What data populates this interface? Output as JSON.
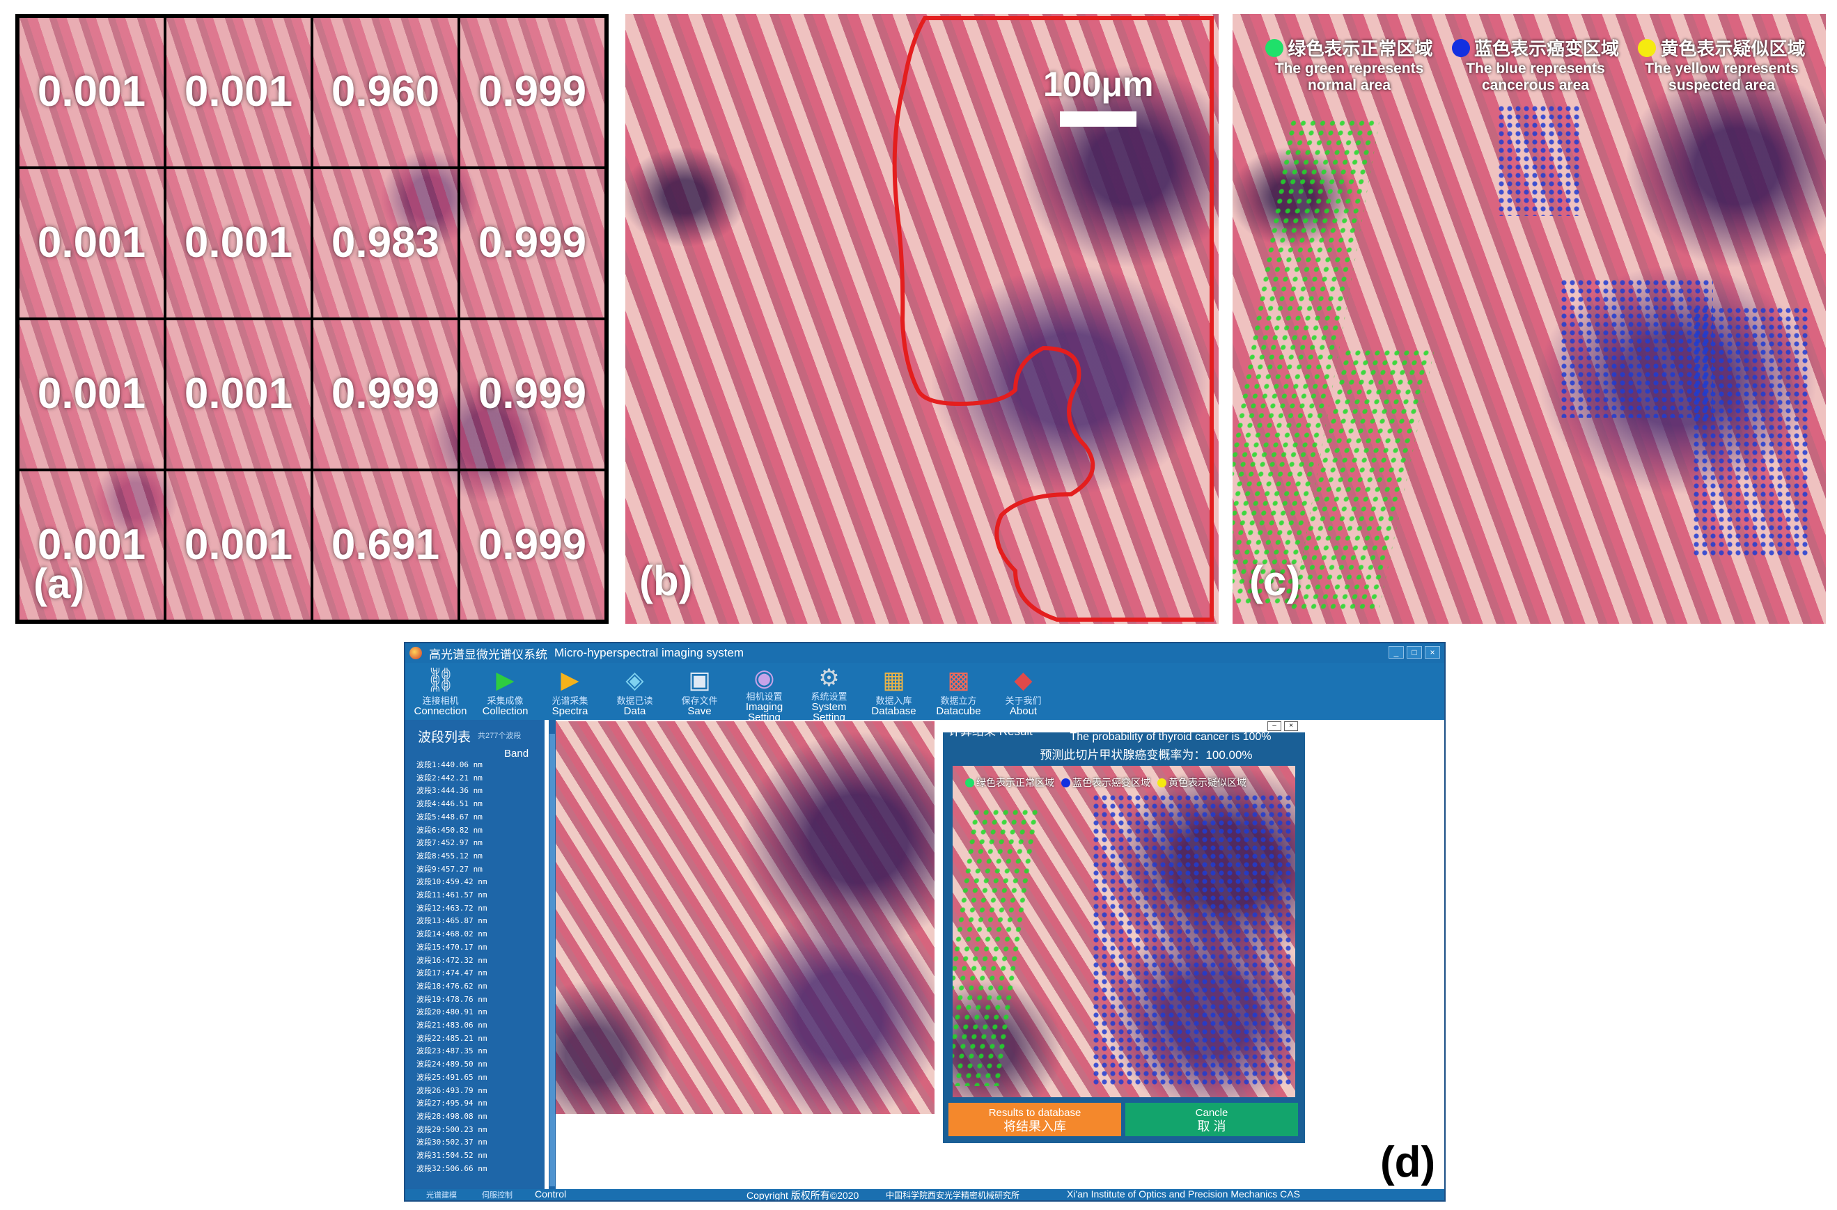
{
  "panel_a": {
    "label": "(a)",
    "grid": [
      [
        "0.001",
        "0.001",
        "0.960",
        "0.999"
      ],
      [
        "0.001",
        "0.001",
        "0.983",
        "0.999"
      ],
      [
        "0.001",
        "0.001",
        "0.999",
        "0.999"
      ],
      [
        "0.001",
        "0.001",
        "0.691",
        "0.999"
      ]
    ]
  },
  "panel_b": {
    "label": "(b)",
    "scale_bar": "100μm",
    "outline_color": "#e41e1e"
  },
  "panel_c": {
    "label": "(c)",
    "legend": [
      {
        "color": "#1fe06a",
        "cn": "绿色表示正常区域",
        "en_line1": "The green represents",
        "en_line2": "normal area"
      },
      {
        "color": "#1230e0",
        "cn": "蓝色表示癌变区域",
        "en_line1": "The blue represents",
        "en_line2": "cancerous area"
      },
      {
        "color": "#f5ea10",
        "cn": "黄色表示疑似区域",
        "en_line1": "The yellow represents",
        "en_line2": "suspected area"
      }
    ]
  },
  "panel_d": {
    "label": "(d)",
    "window": {
      "title_cn": "高光谱显微光谱仪系统",
      "title_en": "Micro-hyperspectral imaging system",
      "controls": [
        "_",
        "□",
        "×"
      ]
    },
    "toolbar": [
      {
        "icon": "link-icon",
        "cn": "连接相机",
        "en": "Connection"
      },
      {
        "icon": "play-green-icon",
        "cn": "采集成像",
        "en": "Collection"
      },
      {
        "icon": "play-store-icon",
        "cn": "光谱采集",
        "en": "Spectra"
      },
      {
        "icon": "data-cube-icon",
        "cn": "数据已读",
        "en": "Data"
      },
      {
        "icon": "floppy-disk-icon",
        "cn": "保存文件",
        "en": "Save"
      },
      {
        "icon": "camera-icon",
        "cn": "相机设置",
        "en": "Imaging"
      },
      {
        "icon": "gear-icon",
        "cn": "系统设置",
        "en": "System"
      },
      {
        "icon": "database-icon",
        "cn": "数据入库",
        "en": "Database"
      },
      {
        "icon": "rubik-cube-icon",
        "cn": "数据立方",
        "en": "Datacube"
      },
      {
        "icon": "info-diamond-icon",
        "cn": "关于我们",
        "en": "About"
      }
    ],
    "toolbar_sub": {
      "imaging": "Setting",
      "system": "Setting"
    },
    "band_panel": {
      "title": "波段列表",
      "count": "共277个波段",
      "column": "Band",
      "bands": [
        "波段1:440.06 nm",
        "波段2:442.21 nm",
        "波段3:444.36 nm",
        "波段4:446.51 nm",
        "波段5:448.67 nm",
        "波段6:450.82 nm",
        "波段7:452.97 nm",
        "波段8:455.12 nm",
        "波段9:457.27 nm",
        "波段10:459.42 nm",
        "波段11:461.57 nm",
        "波段12:463.72 nm",
        "波段13:465.87 nm",
        "波段14:468.02 nm",
        "波段15:470.17 nm",
        "波段16:472.32 nm",
        "波段17:474.47 nm",
        "波段18:476.62 nm",
        "波段19:478.76 nm",
        "波段20:480.91 nm",
        "波段21:483.06 nm",
        "波段22:485.21 nm",
        "波段23:487.35 nm",
        "波段24:489.50 nm",
        "波段25:491.65 nm",
        "波段26:493.79 nm",
        "波段27:495.94 nm",
        "波段28:498.08 nm",
        "波段29:500.23 nm",
        "波段30:502.37 nm",
        "波段31:504.52 nm",
        "波段32:506.66 nm"
      ]
    },
    "result_dialog": {
      "title": "计算结果 Result",
      "probability_en": "The probability of thyroid cancer is 100%",
      "probability_cn": "预测此切片甲状腺癌变概率为：100.00%",
      "legend": [
        {
          "color": "#1fe06a",
          "text": "绿色表示正常区域"
        },
        {
          "color": "#1230e0",
          "text": "蓝色表示癌变区域"
        },
        {
          "color": "#f5ea10",
          "text": "黄色表示疑似区域"
        }
      ],
      "buttons": {
        "results_en": "Results to database",
        "results_cn": "将结果入库",
        "cancel_en": "Cancle",
        "cancel_cn": "取 消"
      }
    },
    "statusbar": {
      "left1": "光谱建模",
      "left2": "伺服控制",
      "control": "Control",
      "copyright": "Copyright 版权所有©2020",
      "org_cn": "中国科学院西安光学精密机械研究所",
      "org_en": "Xi'an Institute of Optics and Precision Mechanics CAS"
    }
  }
}
